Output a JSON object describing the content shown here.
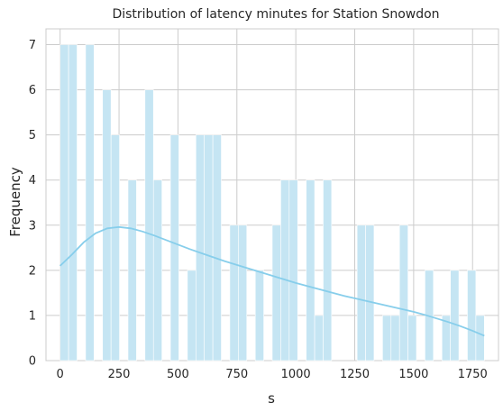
{
  "chart_data": {
    "type": "bar",
    "title": "Distribution of latency minutes for Station Snowdon",
    "xlabel": "s",
    "ylabel": "Frequency",
    "xlim": [
      -60,
      1860
    ],
    "ylim": [
      0,
      7.35
    ],
    "xticks": [
      0,
      250,
      500,
      750,
      1000,
      1250,
      1500,
      1750
    ],
    "yticks": [
      0,
      1,
      2,
      3,
      4,
      5,
      6,
      7
    ],
    "grid": true,
    "bin_width": 36,
    "bins": [
      {
        "x0": 0,
        "count": 7
      },
      {
        "x0": 36,
        "count": 7
      },
      {
        "x0": 72,
        "count": 0
      },
      {
        "x0": 108,
        "count": 7
      },
      {
        "x0": 144,
        "count": 0
      },
      {
        "x0": 180,
        "count": 6
      },
      {
        "x0": 216,
        "count": 5
      },
      {
        "x0": 252,
        "count": 0
      },
      {
        "x0": 288,
        "count": 4
      },
      {
        "x0": 324,
        "count": 0
      },
      {
        "x0": 360,
        "count": 6
      },
      {
        "x0": 396,
        "count": 4
      },
      {
        "x0": 432,
        "count": 0
      },
      {
        "x0": 468,
        "count": 5
      },
      {
        "x0": 504,
        "count": 0
      },
      {
        "x0": 540,
        "count": 2
      },
      {
        "x0": 576,
        "count": 5
      },
      {
        "x0": 612,
        "count": 5
      },
      {
        "x0": 648,
        "count": 5
      },
      {
        "x0": 684,
        "count": 0
      },
      {
        "x0": 720,
        "count": 3
      },
      {
        "x0": 756,
        "count": 3
      },
      {
        "x0": 792,
        "count": 0
      },
      {
        "x0": 828,
        "count": 2
      },
      {
        "x0": 864,
        "count": 0
      },
      {
        "x0": 900,
        "count": 3
      },
      {
        "x0": 936,
        "count": 4
      },
      {
        "x0": 972,
        "count": 4
      },
      {
        "x0": 1008,
        "count": 0
      },
      {
        "x0": 1044,
        "count": 4
      },
      {
        "x0": 1080,
        "count": 1
      },
      {
        "x0": 1116,
        "count": 4
      },
      {
        "x0": 1152,
        "count": 0
      },
      {
        "x0": 1188,
        "count": 0
      },
      {
        "x0": 1224,
        "count": 0
      },
      {
        "x0": 1260,
        "count": 3
      },
      {
        "x0": 1296,
        "count": 3
      },
      {
        "x0": 1332,
        "count": 0
      },
      {
        "x0": 1368,
        "count": 1
      },
      {
        "x0": 1404,
        "count": 1
      },
      {
        "x0": 1440,
        "count": 3
      },
      {
        "x0": 1476,
        "count": 1
      },
      {
        "x0": 1512,
        "count": 0
      },
      {
        "x0": 1548,
        "count": 2
      },
      {
        "x0": 1584,
        "count": 0
      },
      {
        "x0": 1620,
        "count": 1
      },
      {
        "x0": 1656,
        "count": 2
      },
      {
        "x0": 1692,
        "count": 0
      },
      {
        "x0": 1728,
        "count": 2
      },
      {
        "x0": 1764,
        "count": 1
      }
    ],
    "kde": {
      "x": [
        0,
        50,
        100,
        150,
        200,
        250,
        300,
        350,
        400,
        450,
        500,
        550,
        600,
        650,
        700,
        750,
        800,
        850,
        900,
        950,
        1000,
        1050,
        1100,
        1150,
        1200,
        1250,
        1300,
        1350,
        1400,
        1450,
        1500,
        1550,
        1600,
        1650,
        1700,
        1750,
        1800
      ],
      "y": [
        2.1,
        2.35,
        2.62,
        2.82,
        2.93,
        2.96,
        2.93,
        2.86,
        2.77,
        2.67,
        2.57,
        2.47,
        2.38,
        2.29,
        2.2,
        2.12,
        2.04,
        1.96,
        1.88,
        1.8,
        1.72,
        1.65,
        1.58,
        1.51,
        1.44,
        1.38,
        1.32,
        1.26,
        1.2,
        1.14,
        1.08,
        1.01,
        0.93,
        0.85,
        0.76,
        0.66,
        0.55
      ]
    },
    "colors": {
      "bar": "#c5e5f3",
      "kde": "#87ceeb",
      "grid": "#cccccc"
    }
  }
}
